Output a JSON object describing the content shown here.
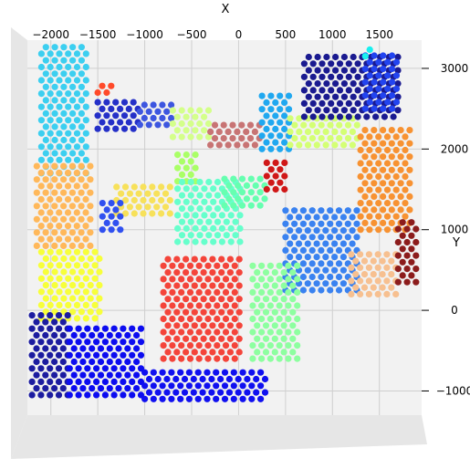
{
  "chart_data": {
    "type": "scatter",
    "title": "",
    "xlabel": "X",
    "ylabel": "Y",
    "xlim": [
      -2250,
      1950
    ],
    "ylim": [
      -1300,
      3350
    ],
    "x_ticks": [
      -2000,
      -1500,
      -1000,
      -500,
      0,
      500,
      1000,
      1500
    ],
    "y_ticks": [
      3000,
      2000,
      1000,
      0,
      -1000
    ],
    "x_tick_labels": [
      "−2000",
      "−1500",
      "−1000",
      "−500",
      "0",
      "500",
      "1000",
      "1500"
    ],
    "y_tick_labels": [
      "3000",
      "2000",
      "1000",
      "0",
      "−1000"
    ],
    "grid": true,
    "hex_spacing": 95,
    "clusters": [
      {
        "color": "#3ccff0",
        "x": [
          -2100,
          -1600
        ],
        "y": [
          1700,
          3300
        ]
      },
      {
        "color": "#2530c8",
        "x": [
          -1500,
          -1050
        ],
        "y": [
          2250,
          2650
        ]
      },
      {
        "color": "#3d56e0",
        "x": [
          -1050,
          -700
        ],
        "y": [
          2300,
          2550
        ]
      },
      {
        "color": "#d4ff8a",
        "x": [
          -700,
          -300
        ],
        "y": [
          2150,
          2500
        ]
      },
      {
        "color": "#c87474",
        "x": [
          -300,
          250
        ],
        "y": [
          2050,
          2350
        ]
      },
      {
        "color": "#20a8f0",
        "x": [
          250,
          550
        ],
        "y": [
          2000,
          2700
        ]
      },
      {
        "color": "#d4ff74",
        "x": [
          550,
          1300
        ],
        "y": [
          2050,
          2450
        ]
      },
      {
        "color": "#1a1a90",
        "x": [
          700,
          1700
        ],
        "y": [
          2400,
          3150
        ]
      },
      {
        "color": "#2244f0",
        "x": [
          1350,
          1700
        ],
        "y": [
          2500,
          3200
        ]
      },
      {
        "color": "#f79232",
        "x": [
          1300,
          1850
        ],
        "y": [
          1000,
          2300
        ]
      },
      {
        "color": "#ffb85a",
        "x": [
          -2150,
          -1550
        ],
        "y": [
          800,
          1850
        ]
      },
      {
        "color": "#f7e15a",
        "x": [
          -1300,
          -700
        ],
        "y": [
          1200,
          1550
        ]
      },
      {
        "color": "#aaff66",
        "x": [
          -650,
          -450
        ],
        "y": [
          1600,
          2000
        ]
      },
      {
        "color": "#66ffcc",
        "x": [
          -650,
          50
        ],
        "y": [
          850,
          1600
        ]
      },
      {
        "color": "#66ffb0",
        "x": [
          -150,
          300
        ],
        "y": [
          1300,
          1700
        ]
      },
      {
        "color": "#d01818",
        "x": [
          300,
          500
        ],
        "y": [
          1500,
          1900
        ]
      },
      {
        "color": "#3a82f0",
        "x": [
          500,
          1300
        ],
        "y": [
          250,
          1250
        ]
      },
      {
        "color": "#f7c090",
        "x": [
          1200,
          1700
        ],
        "y": [
          200,
          700
        ]
      },
      {
        "color": "#8c1c1c",
        "x": [
          1700,
          1900
        ],
        "y": [
          350,
          1100
        ]
      },
      {
        "color": "#3050f0",
        "x": [
          -1450,
          -1250
        ],
        "y": [
          1000,
          1350
        ]
      },
      {
        "color": "#f7ff3a",
        "x": [
          -2100,
          -1450
        ],
        "y": [
          -100,
          800
        ]
      },
      {
        "color": "#f4443a",
        "x": [
          -800,
          50
        ],
        "y": [
          -600,
          700
        ]
      },
      {
        "color": "#8dffa0",
        "x": [
          150,
          650
        ],
        "y": [
          -600,
          600
        ]
      },
      {
        "color": "#1c1ca0",
        "x": [
          -2200,
          -1800
        ],
        "y": [
          -1050,
          0
        ]
      },
      {
        "color": "#0c0cf0",
        "x": [
          -1800,
          -1000
        ],
        "y": [
          -1050,
          -150
        ]
      },
      {
        "color": "#1010f0",
        "x": [
          -1000,
          300
        ],
        "y": [
          -1100,
          -700
        ]
      },
      {
        "color": "#ff4a2a",
        "x": [
          -1500,
          -1350
        ],
        "y": [
          2700,
          2800
        ]
      },
      {
        "color": "#18f0f0",
        "x": [
          1350,
          1400
        ],
        "y": [
          3150,
          3250
        ]
      }
    ]
  }
}
